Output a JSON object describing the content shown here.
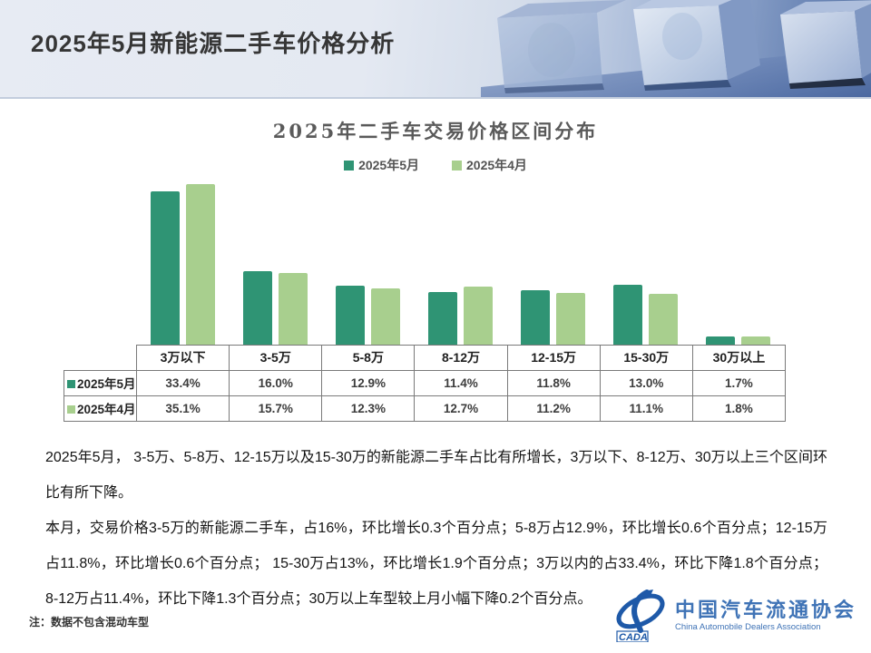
{
  "header": {
    "title": "2025年5月新能源二手车价格分析"
  },
  "chart": {
    "title": "2025年二手车交易价格区间分布"
  },
  "chart_data": {
    "type": "bar",
    "title": "2025年二手车交易价格区间分布",
    "categories": [
      "3万以下",
      "3-5万",
      "5-8万",
      "8-12万",
      "12-15万",
      "15-30万",
      "30万以上"
    ],
    "series": [
      {
        "name": "2025年5月",
        "color": "#2f9474",
        "values": [
          33.4,
          16.0,
          12.9,
          11.4,
          11.8,
          13.0,
          1.7
        ]
      },
      {
        "name": "2025年4月",
        "color": "#a8cf8e",
        "values": [
          35.1,
          15.7,
          12.3,
          12.7,
          11.2,
          11.1,
          1.8
        ]
      }
    ],
    "value_format": "percent",
    "ylim": [
      0,
      36
    ],
    "grid": false,
    "legend_position": "top",
    "data_table_below_axis": true
  },
  "table": {
    "row_labels": [
      "2025年5月",
      "2025年4月"
    ],
    "values": [
      [
        "33.4%",
        "16.0%",
        "12.9%",
        "11.4%",
        "11.8%",
        "13.0%",
        "1.7%"
      ],
      [
        "35.1%",
        "15.7%",
        "12.3%",
        "12.7%",
        "11.2%",
        "11.1%",
        "1.8%"
      ]
    ]
  },
  "body": {
    "paragraph1": "2025年5月， 3-5万、5-8万、12-15万以及15-30万的新能源二手车占比有所增长，3万以下、8-12万、30万以上三个区间环比有所下降。",
    "paragraph2": "本月，交易价格3-5万的新能源二手车，占16%，环比增长0.3个百分点；5-8万占12.9%，环比增长0.6个百分点；12-15万占11.8%，环比增长0.6个百分点； 15-30万占13%，环比增长1.9个百分点；3万以内的占33.4%，环比下降1.8个百分点； 8-12万占11.4%，环比下降1.3个百分点；30万以上车型较上月小幅下降0.2个百分点。"
  },
  "footer": {
    "note": "注：数据不包含混动车型",
    "logo_cn": "中国汽车流通协会",
    "logo_en": "China Automobile Dealers Association",
    "logo_acronym": "CADA",
    "logo_color": "#1e59a8"
  }
}
